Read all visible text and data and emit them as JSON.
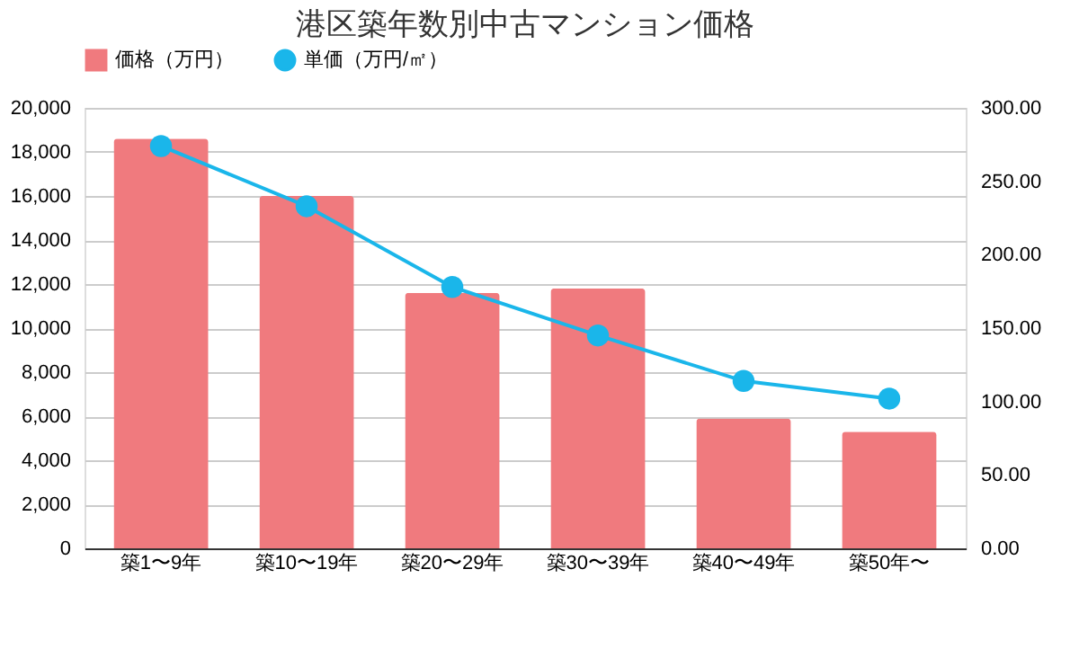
{
  "chart_data": {
    "type": "bar",
    "title": "港区築年数別中古マンション価格",
    "categories": [
      "築1〜9年",
      "築10〜19年",
      "築20〜29年",
      "築30〜39年",
      "築40〜49年",
      "築50年〜"
    ],
    "series": [
      {
        "name": "価格（万円）",
        "color": "#f07a7e",
        "values": [
          18600,
          16000,
          11600,
          11800,
          5900,
          5300
        ]
      },
      {
        "name": "単価（万円/㎡）",
        "color": "#1ab6ea",
        "type": "line",
        "axis": "y2",
        "marker": "circle",
        "values": [
          274,
          233,
          178,
          145,
          114,
          102
        ]
      }
    ],
    "ylim": [
      0,
      20000
    ],
    "yticks": [
      {
        "value": 0,
        "label": "0"
      },
      {
        "value": 2000,
        "label": "2,000"
      },
      {
        "value": 4000,
        "label": "4,000"
      },
      {
        "value": 6000,
        "label": "6,000"
      },
      {
        "value": 8000,
        "label": "8,000"
      },
      {
        "value": 10000,
        "label": "10,000"
      },
      {
        "value": 12000,
        "label": "12,000"
      },
      {
        "value": 14000,
        "label": "14,000"
      },
      {
        "value": 16000,
        "label": "16,000"
      },
      {
        "value": 18000,
        "label": "18,000"
      },
      {
        "value": 20000,
        "label": "20,000"
      }
    ],
    "y2lim": [
      0,
      300
    ],
    "y2ticks": [
      {
        "value": 0,
        "label": "0.00"
      },
      {
        "value": 50,
        "label": "50.00"
      },
      {
        "value": 100,
        "label": "100.00"
      },
      {
        "value": 150,
        "label": "150.00"
      },
      {
        "value": 200,
        "label": "200.00"
      },
      {
        "value": 250,
        "label": "250.00"
      },
      {
        "value": 300,
        "label": "300.00"
      }
    ],
    "grid": "y",
    "legend": "top"
  }
}
